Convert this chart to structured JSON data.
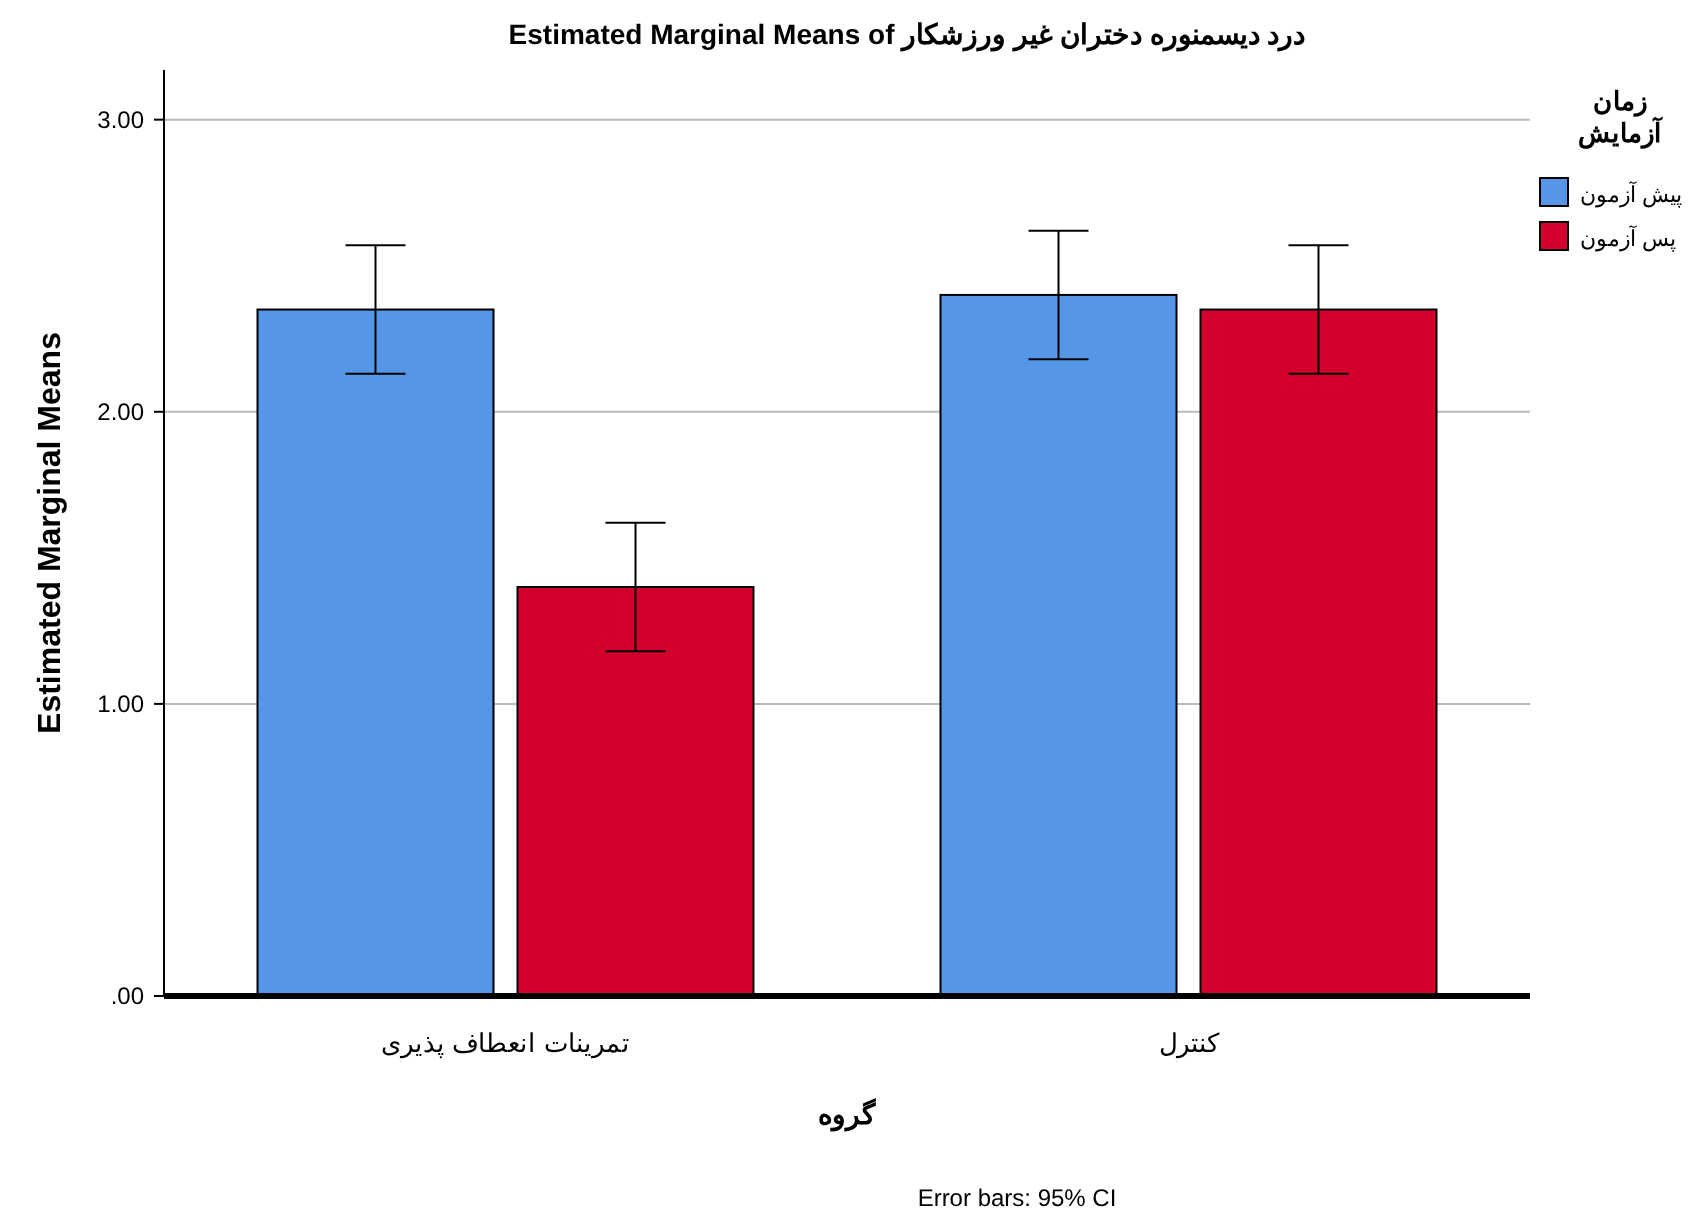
{
  "chart_data": {
    "type": "bar",
    "title": "Estimated Marginal Means of درد دیسمنوره دختران غیر ورزشکار",
    "xlabel": "گروه",
    "ylabel": "Estimated Marginal Means",
    "legend_title": "زمان آزمایش",
    "categories": [
      "تمرینات انعطاف پذیری",
      "کنترل"
    ],
    "series": [
      {
        "name": "پیش آزمون",
        "color": "#5596e6",
        "values": [
          2.35,
          2.4
        ],
        "errors": [
          0.22,
          0.22
        ]
      },
      {
        "name": "پس آزمون",
        "color": "#d2002d",
        "values": [
          1.4,
          2.35
        ],
        "errors": [
          0.22,
          0.22
        ]
      }
    ],
    "ylim": [
      0,
      3.17
    ],
    "yticks": [
      {
        "value": 0,
        "label": ".00"
      },
      {
        "value": 1,
        "label": "1.00"
      },
      {
        "value": 2,
        "label": "2.00"
      },
      {
        "value": 3,
        "label": "3.00"
      }
    ],
    "grid": "y",
    "legend": "top right",
    "annotations": [
      "Error bars: 95% CI"
    ]
  }
}
